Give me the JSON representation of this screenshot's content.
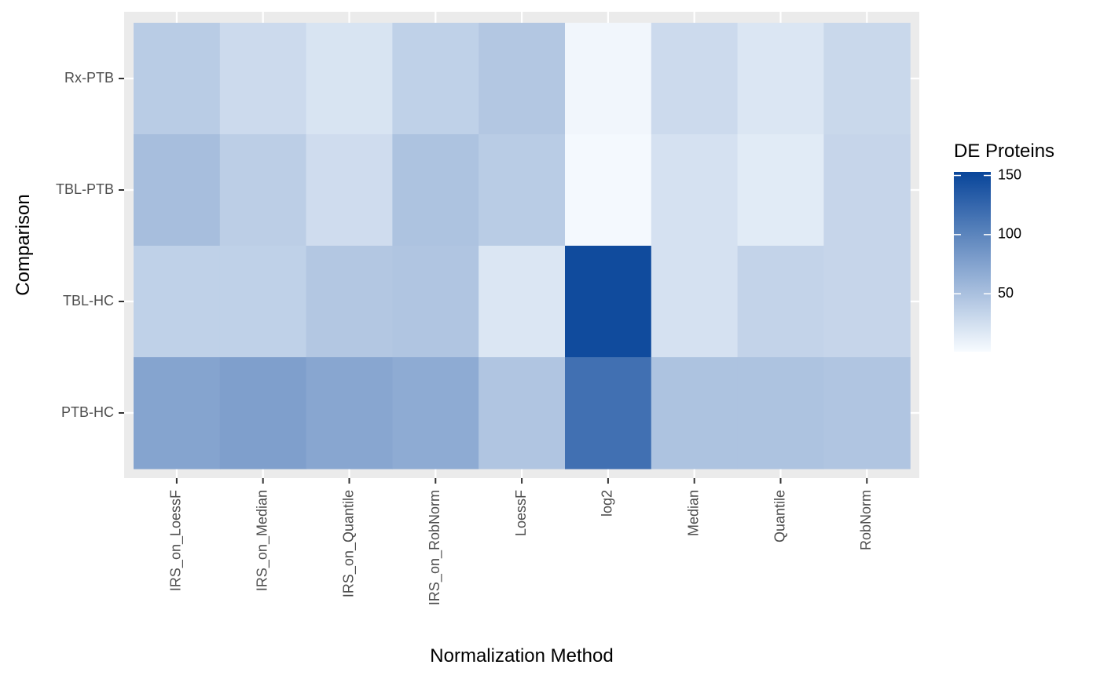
{
  "chart_data": {
    "type": "heatmap",
    "xlabel": "Normalization Method",
    "ylabel": "Comparison",
    "x_categories": [
      "IRS_on_LoessF",
      "IRS_on_Median",
      "IRS_on_Quantile",
      "IRS_on_RobNorm",
      "LoessF",
      "log2",
      "Median",
      "Quantile",
      "RobNorm"
    ],
    "y_categories": [
      "Rx-PTB",
      "TBL-PTB",
      "TBL-HC",
      "PTB-HC"
    ],
    "values": [
      [
        40,
        28,
        20,
        36,
        44,
        4,
        28,
        18,
        30
      ],
      [
        52,
        38,
        26,
        48,
        40,
        2,
        22,
        14,
        32
      ],
      [
        36,
        36,
        44,
        46,
        18,
        150,
        22,
        34,
        32
      ],
      [
        74,
        78,
        72,
        68,
        46,
        118,
        48,
        48,
        46
      ]
    ],
    "color_scale": {
      "min": 0,
      "max": 155,
      "low_color": "#f7fbff",
      "high_color": "#08459a"
    },
    "legend": {
      "title": "DE Proteins",
      "ticks": [
        50,
        100,
        150
      ],
      "placement": "right"
    },
    "grid": true,
    "panel_background": "#ebebeb"
  }
}
